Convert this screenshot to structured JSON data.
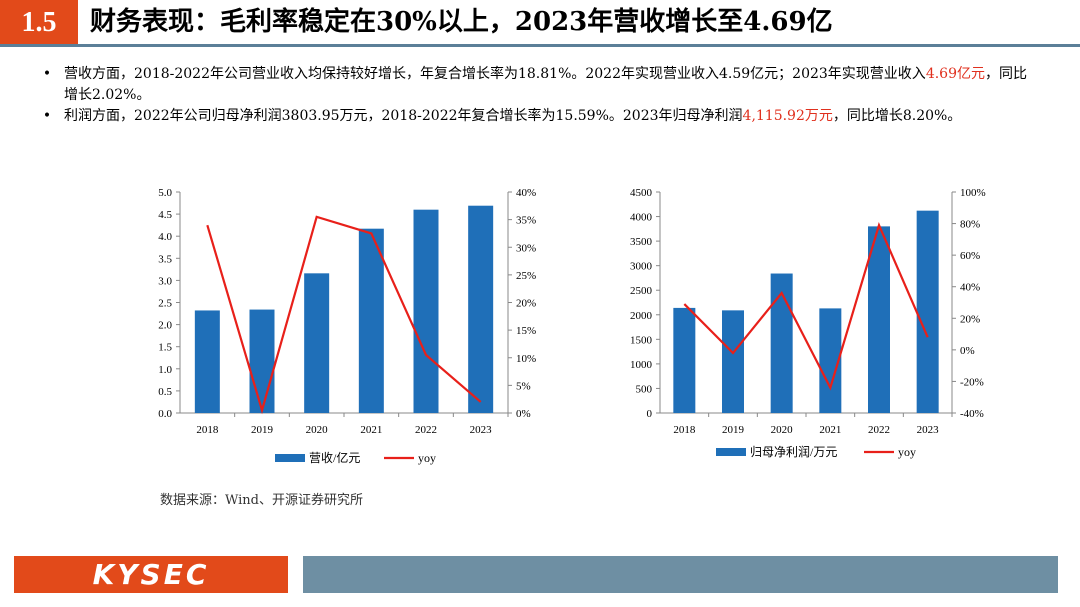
{
  "header": {
    "section_number": "1.5",
    "title": "财务表现：毛利率稳定在30%以上，2023年营收增长至4.69亿"
  },
  "bullets": [
    {
      "parts": [
        {
          "text": "营收方面，2018-2022年公司营业收入均保持较好增长，年复合增长率为18.81%。2022年实现营业收入4.59亿元；2023年实现营业收入",
          "highlight": false
        },
        {
          "text": "4.69亿元",
          "highlight": true
        },
        {
          "text": "，同比增长2.02%。",
          "highlight": false
        }
      ]
    },
    {
      "parts": [
        {
          "text": "利润方面，2022年公司归母净利润3803.95万元，2018-2022年复合增长率为15.59%。2023年归母净利润",
          "highlight": false
        },
        {
          "text": "4,115.92万元",
          "highlight": true
        },
        {
          "text": "，同比增长8.20%。",
          "highlight": false
        }
      ]
    }
  ],
  "colors": {
    "bar": "#1f6fb8",
    "line": "#e8201a",
    "accent": "#e24a1a"
  },
  "chart_data": [
    {
      "type": "bar",
      "categories": [
        "2018",
        "2019",
        "2020",
        "2021",
        "2022",
        "2023"
      ],
      "series": [
        {
          "name": "营收/亿元",
          "type": "bar",
          "axis": "left",
          "values": [
            2.32,
            2.34,
            3.16,
            4.17,
            4.6,
            4.69
          ]
        },
        {
          "name": "yoy",
          "type": "line",
          "axis": "right",
          "values": [
            34,
            0.5,
            35.5,
            32.5,
            10.5,
            2
          ]
        }
      ],
      "left_axis": {
        "ticks": [
          "0.0",
          "0.5",
          "1.0",
          "1.5",
          "2.0",
          "2.5",
          "3.0",
          "3.5",
          "4.0",
          "4.5",
          "5.0"
        ],
        "range": [
          0,
          5
        ]
      },
      "right_axis": {
        "ticks": [
          "0%",
          "5%",
          "10%",
          "15%",
          "20%",
          "25%",
          "30%",
          "35%",
          "40%"
        ],
        "range": [
          0,
          40
        ]
      },
      "legend_position": "bottom"
    },
    {
      "type": "bar",
      "categories": [
        "2018",
        "2019",
        "2020",
        "2021",
        "2022",
        "2023"
      ],
      "series": [
        {
          "name": "归母净利润/万元",
          "type": "bar",
          "axis": "left",
          "values": [
            2140,
            2090,
            2840,
            2130,
            3800,
            4120
          ]
        },
        {
          "name": "yoy",
          "type": "line",
          "axis": "right",
          "values": [
            29,
            -2,
            36,
            -24,
            79,
            8
          ]
        }
      ],
      "left_axis": {
        "ticks": [
          "0",
          "500",
          "1000",
          "1500",
          "2000",
          "2500",
          "3000",
          "3500",
          "4000",
          "4500"
        ],
        "range": [
          0,
          4500
        ]
      },
      "right_axis": {
        "ticks": [
          "-40%",
          "-20%",
          "0%",
          "20%",
          "40%",
          "60%",
          "80%",
          "100%"
        ],
        "range": [
          -40,
          100
        ]
      },
      "legend_position": "bottom"
    }
  ],
  "source_note": "数据来源：Wind、开源证券研究所",
  "footer": {
    "logo_text": "KYSEC"
  }
}
